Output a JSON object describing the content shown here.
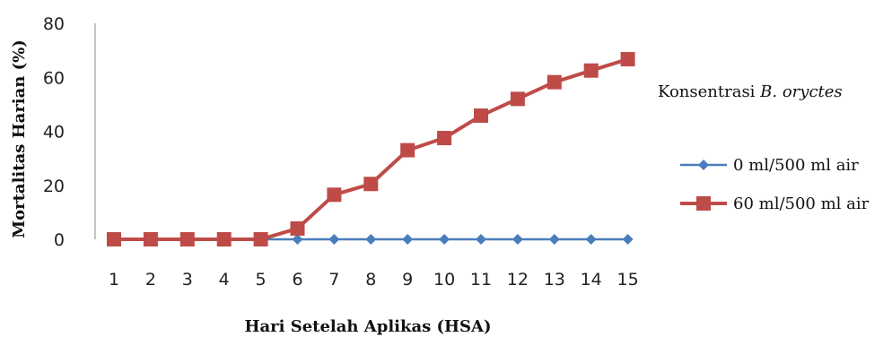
{
  "chart_data": {
    "type": "line",
    "x": [
      1,
      2,
      3,
      4,
      5,
      6,
      7,
      8,
      9,
      10,
      11,
      12,
      13,
      14,
      15
    ],
    "series": [
      {
        "name": "0 ml/500 ml air",
        "values": [
          0,
          0,
          0,
          0,
          0,
          0,
          0,
          0,
          0,
          0,
          0,
          0,
          0,
          0,
          0
        ],
        "color": "#4a7ebb",
        "marker": "diamond"
      },
      {
        "name": "60 ml/500 ml air",
        "values": [
          0,
          0,
          0,
          0,
          0,
          4,
          16.5,
          20.5,
          33,
          37.5,
          45.8,
          52,
          58.2,
          62.5,
          66.7
        ],
        "color": "#be4b48",
        "marker": "square"
      }
    ],
    "xlabel": "Hari Setelah Aplikas (HSA)",
    "ylabel": "Mortalitas Harian (%)",
    "ylim": [
      0,
      80
    ],
    "yticks": [
      0,
      20,
      40,
      60,
      80
    ],
    "legend": {
      "title_prefix": "Konsentrasi ",
      "title_italic": "B. oryctes",
      "position": "right"
    },
    "grid": false
  }
}
